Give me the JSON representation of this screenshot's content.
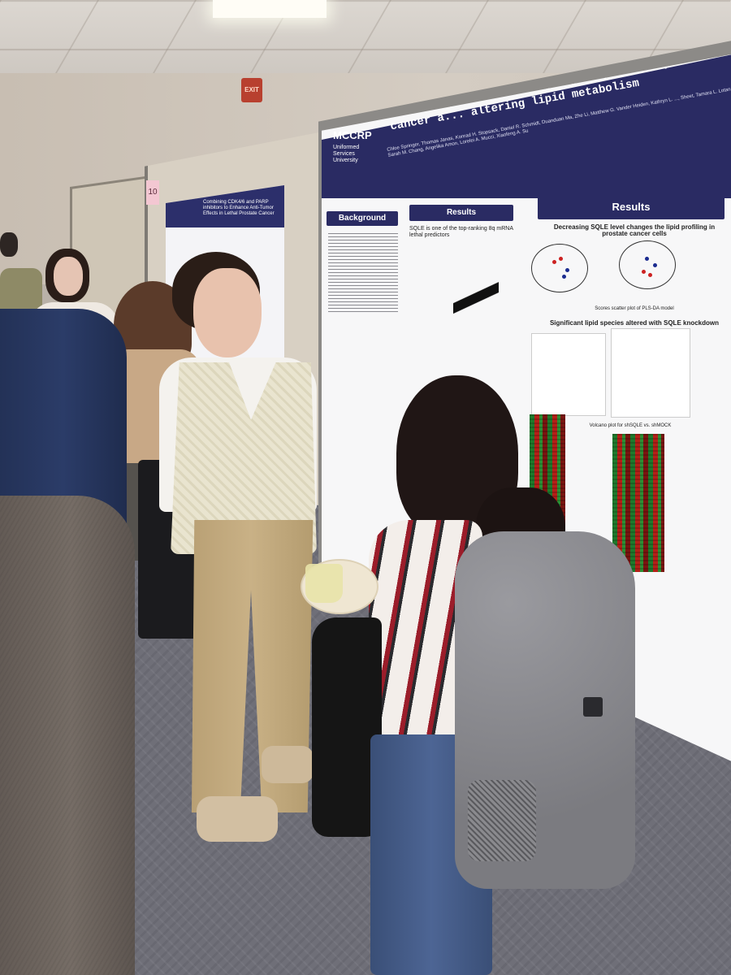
{
  "scene": {
    "exit_sign": "EXIT",
    "board_number": "10"
  },
  "left_poster": {
    "title": "Combining CDK4/6 and PARP inhibitors to Enhance Anti-Tumor Effects in Lethal Prostate Cancer"
  },
  "main_poster": {
    "logo": "MCCRP",
    "logo_sub": "Uniformed Services University",
    "title": "Aneuploidy-associated SQLE gain promotes prostate cancer a... altering lipid metabolism",
    "authors": "Chloe Springer, Thomas Janas, Konrad H. Stopsack, Daniel R. Schmidt, Duanduan Ma, Zhe Li, Matthew G. Vander Heiden, Kathryn L. ..., Sheet, Tamara L. Lotan, Sarah M. Chang, Angelika Amon, Lorelei A. Mucci, Xiaofeng A. Su",
    "sections": {
      "background": "Background",
      "results_left": "Results",
      "results_right": "Results"
    },
    "text": {
      "sqle_note": "SQLE is one of the top-ranking 8q mRNA lethal predictors",
      "fig_lipid": "Decreasing SQLE level changes the lipid profiling in prostate cancer cells",
      "fig_pca": "Scores scatter plot of PLS-DA model",
      "fig_lipid_species": "Significant lipid species altered with SQLE knockdown",
      "fig_volcano": "Volcano plot for shSQLE vs. shMOCK"
    }
  },
  "colors": {
    "poster_navy": "#2a2b63",
    "heatmap_green": "#1e7a2c",
    "heatmap_red": "#b52018"
  }
}
